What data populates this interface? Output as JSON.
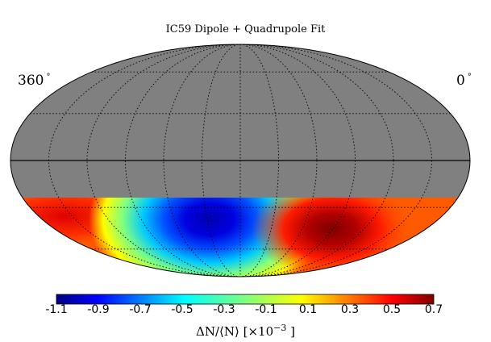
{
  "map": {
    "title": "IC59 Dipole + Quadrupole Fit",
    "projection": "mollweide",
    "left_longitude_label": "360",
    "right_longitude_label": "0",
    "degree_symbol": "°",
    "masked_color": "#808080",
    "masked_region": "declination above about -25 degrees (grey)",
    "hot_spot_color": "#7f0000",
    "cold_spot_color": "#0000c8",
    "grid": "dotted graticule, solid equator line"
  },
  "colorbar": {
    "colormap": "jet",
    "min": -1.1,
    "max": 0.7,
    "tick_labels": [
      "-1.1",
      "-0.9",
      "-0.7",
      "-0.5",
      "-0.3",
      "-0.1",
      "0.1",
      "0.3",
      "0.5",
      "0.7"
    ],
    "label_prefix": "ΔN/⟨N⟩ [",
    "label_times": "×10",
    "label_exponent": "−3",
    "label_suffix": " ]"
  }
}
